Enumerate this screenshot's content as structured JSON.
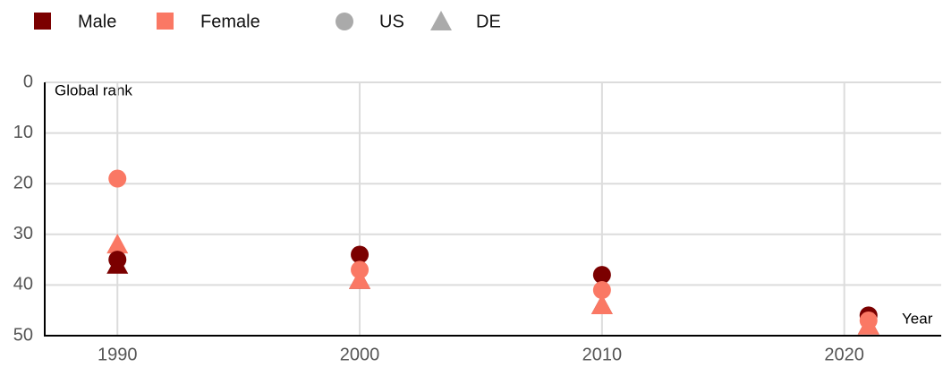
{
  "chart_data": {
    "type": "scatter",
    "x_label": "Year",
    "y_label": "Global rank",
    "x": [
      1990,
      2000,
      2010,
      2021
    ],
    "series": [
      {
        "name": "Male",
        "color": "#7b0000",
        "markers": {
          "circle": [
            35,
            34,
            38,
            46
          ],
          "triangle": [
            36,
            39,
            44,
            48
          ]
        }
      },
      {
        "name": "Female",
        "color": "#fa7864",
        "markers": {
          "circle": [
            19,
            37,
            41,
            47
          ],
          "triangle": [
            32,
            39,
            44,
            48
          ]
        }
      }
    ],
    "shapes": [
      {
        "name": "US",
        "shape": "circle"
      },
      {
        "name": "DE",
        "shape": "triangle"
      }
    ],
    "shape_legend_color": "#aaaaaa",
    "xlim": [
      1987,
      2024
    ],
    "xticks": [
      1990,
      2000,
      2010,
      2020
    ],
    "ylim": [
      0,
      50
    ],
    "yticks": [
      0,
      10,
      20,
      30,
      40,
      50
    ],
    "y_inverted": true,
    "grid": true
  }
}
